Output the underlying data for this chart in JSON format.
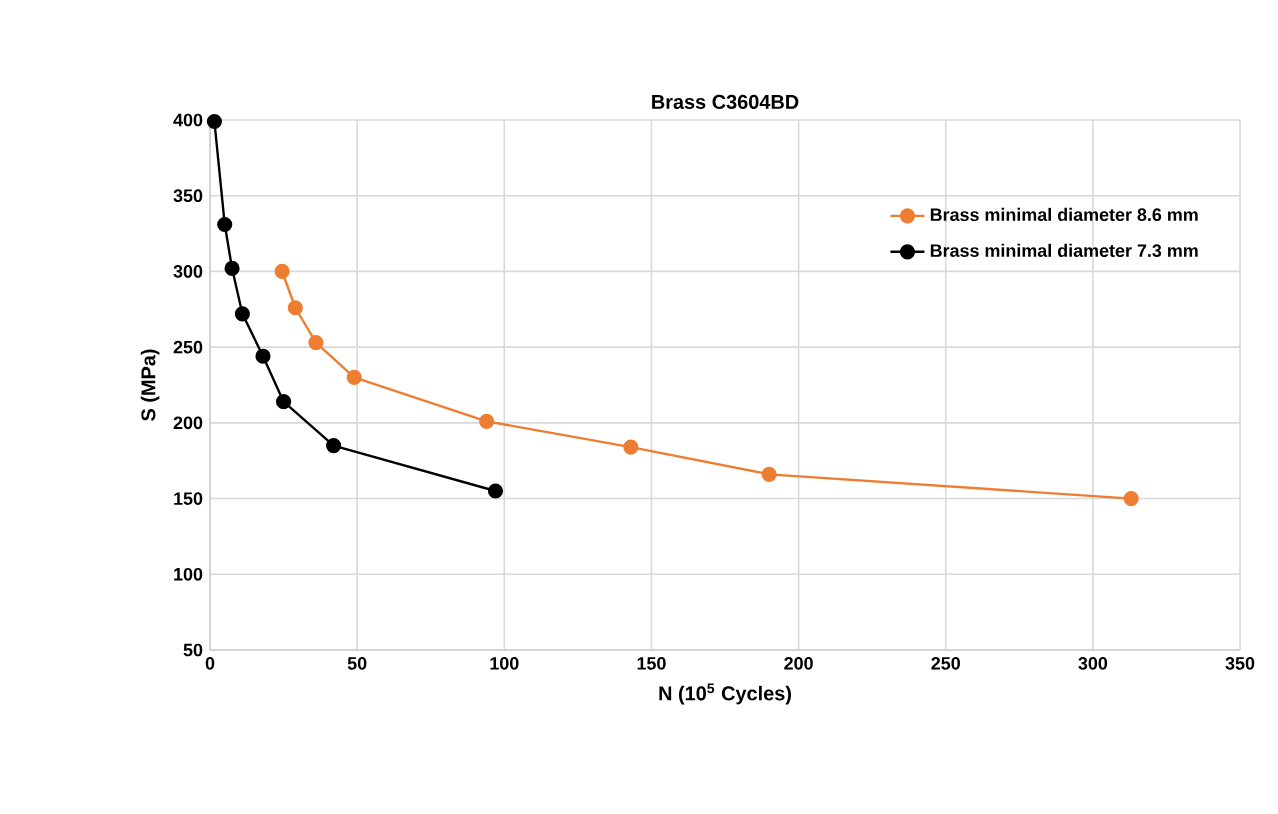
{
  "chart_data": {
    "type": "line",
    "title": "Brass C3604BD",
    "xlabel": "N (10$^{5}$ Cycles)",
    "ylabel": "S (MPa)",
    "series": [
      {
        "name": "Brass minimal diameter 8.6 mm",
        "color": "#ed7d31",
        "x": [
          24.5,
          29,
          36,
          49,
          94,
          143,
          190,
          313
        ],
        "values": [
          300,
          276,
          253,
          230,
          201,
          184,
          166,
          150
        ]
      },
      {
        "name": "Brass minimal diameter 7.3 mm",
        "color": "#000000",
        "x": [
          1.5,
          5,
          7.5,
          11,
          18,
          25,
          42,
          97
        ],
        "values": [
          399,
          331,
          302,
          272,
          244,
          214,
          185,
          155
        ]
      }
    ],
    "xlim": [
      0,
      350
    ],
    "xticks": [
      0,
      50,
      100,
      150,
      200,
      250,
      300,
      350
    ],
    "ylim": [
      50,
      400
    ],
    "yticks": [
      50,
      100,
      150,
      200,
      250,
      300,
      350,
      400
    ],
    "grid": true,
    "legend": "top right",
    "marker": "circle",
    "line_style": "solid"
  }
}
